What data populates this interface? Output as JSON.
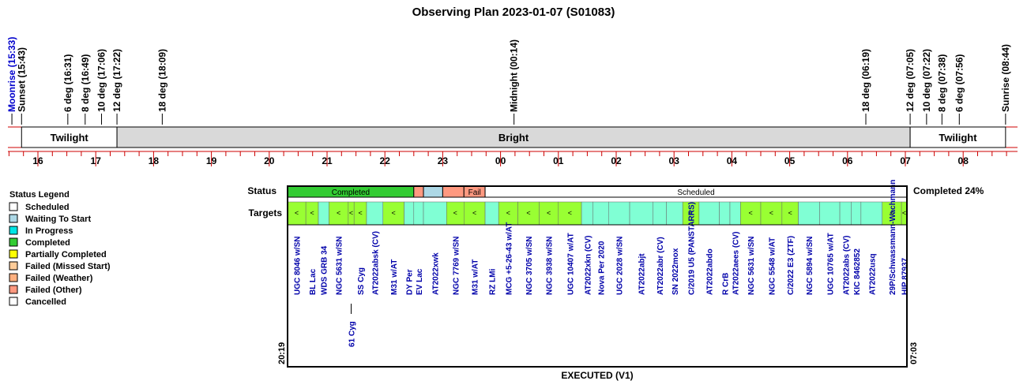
{
  "chart_data": {
    "type": "observing-plan-timeline",
    "title": "Observing Plan 2023-01-07 (S01083)",
    "events": [
      {
        "label": "Moonrise (15:33)",
        "time": 15.55,
        "moon": true
      },
      {
        "label": "Sunset (15:43)",
        "time": 15.717
      },
      {
        "label": "6 deg (16:31)",
        "time": 16.517
      },
      {
        "label": "8 deg (16:49)",
        "time": 16.817
      },
      {
        "label": "10 deg (17:06)",
        "time": 17.1
      },
      {
        "label": "12 deg (17:22)",
        "time": 17.367
      },
      {
        "label": "18 deg (18:09)",
        "time": 18.15
      },
      {
        "label": "Midnight (00:14)",
        "time": 24.233
      },
      {
        "label": "18 deg (06:19)",
        "time": 30.317
      },
      {
        "label": "12 deg (07:05)",
        "time": 31.083
      },
      {
        "label": "10 deg (07:22)",
        "time": 31.367
      },
      {
        "label": "8 deg (07:38)",
        "time": 31.633
      },
      {
        "label": "6 deg (07:56)",
        "time": 31.933
      },
      {
        "label": "Sunrise (08:44)",
        "time": 32.733
      }
    ],
    "bands": [
      {
        "label": "Twilight",
        "start": 15.717,
        "end": 17.367,
        "shade": false
      },
      {
        "label": "Bright",
        "start": 17.367,
        "end": 31.083,
        "shade": true
      },
      {
        "label": "Twilight",
        "start": 31.083,
        "end": 32.733,
        "shade": false
      }
    ],
    "hour_ticks": [
      {
        "label": "16",
        "time": 16
      },
      {
        "label": "17",
        "time": 17
      },
      {
        "label": "18",
        "time": 18
      },
      {
        "label": "19",
        "time": 19
      },
      {
        "label": "20",
        "time": 20
      },
      {
        "label": "21",
        "time": 21
      },
      {
        "label": "22",
        "time": 22
      },
      {
        "label": "23",
        "time": 23
      },
      {
        "label": "00",
        "time": 24
      },
      {
        "label": "01",
        "time": 25
      },
      {
        "label": "02",
        "time": 26
      },
      {
        "label": "03",
        "time": 27
      },
      {
        "label": "04",
        "time": 28
      },
      {
        "label": "05",
        "time": 29
      },
      {
        "label": "06",
        "time": 30
      },
      {
        "label": "07",
        "time": 31
      },
      {
        "label": "08",
        "time": 32
      }
    ],
    "status_label": "Status",
    "targets_label": "Targets",
    "status_segments": [
      {
        "label": "Completed",
        "start": 20.317,
        "end": 22.5,
        "status": "completed"
      },
      {
        "label": "",
        "start": 22.5,
        "end": 22.667,
        "status": "failed-other"
      },
      {
        "label": "",
        "start": 22.667,
        "end": 23.0,
        "status": "waiting"
      },
      {
        "label": "",
        "start": 23.0,
        "end": 23.367,
        "status": "failed-other"
      },
      {
        "label": "Fail",
        "start": 23.367,
        "end": 23.733,
        "status": "failed-other"
      },
      {
        "label": "Scheduled",
        "start": 23.733,
        "end": 31.05,
        "status": "scheduled"
      }
    ],
    "targets": [
      {
        "name": "UGC 8046 w/SN",
        "start": 20.317,
        "end": 20.633,
        "status": "partial",
        "mark": "<"
      },
      {
        "name": "BL Lac",
        "start": 20.633,
        "end": 20.85,
        "status": "partial",
        "mark": "<"
      },
      {
        "name": "WDS GRB 34",
        "start": 20.85,
        "end": 21.033,
        "status": "progress",
        "mark": ""
      },
      {
        "name": "NGC 5631 w/SN",
        "start": 21.033,
        "end": 21.367,
        "status": "partial",
        "mark": "<"
      },
      {
        "name": "61 Cyg",
        "start": 21.367,
        "end": 21.467,
        "status": "partial",
        "mark": "<",
        "low": true
      },
      {
        "name": "SS Cyg",
        "start": 21.467,
        "end": 21.683,
        "status": "partial",
        "mark": "<"
      },
      {
        "name": "AT2022absk (CV)",
        "start": 21.683,
        "end": 21.967,
        "status": "progress",
        "mark": ""
      },
      {
        "name": "M31 w/AT",
        "start": 21.967,
        "end": 22.333,
        "status": "partial",
        "mark": "<"
      },
      {
        "name": "DY Per",
        "start": 22.333,
        "end": 22.5,
        "status": "progress",
        "mark": ""
      },
      {
        "name": "EV Lac",
        "start": 22.5,
        "end": 22.667,
        "status": "progress",
        "mark": ""
      },
      {
        "name": "AT2022xwk",
        "start": 22.667,
        "end": 23.067,
        "status": "progress",
        "mark": ""
      },
      {
        "name": "NGC 7769 w/SN",
        "start": 23.067,
        "end": 23.367,
        "status": "partial",
        "mark": "<"
      },
      {
        "name": "M31 w/AT",
        "start": 23.367,
        "end": 23.733,
        "status": "partial",
        "mark": "<"
      },
      {
        "name": "RZ LMi",
        "start": 23.733,
        "end": 23.967,
        "status": "progress",
        "mark": ""
      },
      {
        "name": "MCG +5-26-43 w/AT",
        "start": 23.967,
        "end": 24.3,
        "status": "partial",
        "mark": "<"
      },
      {
        "name": "NGC 3705 w/SN",
        "start": 24.3,
        "end": 24.667,
        "status": "partial",
        "mark": "<"
      },
      {
        "name": "NGC 3938 w/SN",
        "start": 24.667,
        "end": 25.0,
        "status": "partial",
        "mark": "<"
      },
      {
        "name": "UGC 10407 w/AT",
        "start": 25.0,
        "end": 25.4,
        "status": "partial",
        "mark": "<"
      },
      {
        "name": "AT2022xkn (CV)",
        "start": 25.4,
        "end": 25.6,
        "status": "progress",
        "mark": ""
      },
      {
        "name": "Nova Per 2020",
        "start": 25.6,
        "end": 25.867,
        "status": "progress",
        "mark": ""
      },
      {
        "name": "UGC 2028 w/SN",
        "start": 25.867,
        "end": 26.233,
        "status": "progress",
        "mark": ""
      },
      {
        "name": "AT2022abjt",
        "start": 26.233,
        "end": 26.633,
        "status": "progress",
        "mark": ""
      },
      {
        "name": "AT2022abr (CV)",
        "start": 26.633,
        "end": 26.867,
        "status": "progress",
        "mark": ""
      },
      {
        "name": "SN 2022mox",
        "start": 26.867,
        "end": 27.15,
        "status": "progress",
        "mark": ""
      },
      {
        "name": "C/2019 U5 (PANSTARRS)",
        "start": 27.15,
        "end": 27.433,
        "status": "partial",
        "mark": "<"
      },
      {
        "name": "AT2022abdo",
        "start": 27.433,
        "end": 27.783,
        "status": "progress",
        "mark": ""
      },
      {
        "name": "R CrB",
        "start": 27.783,
        "end": 27.967,
        "status": "progress",
        "mark": ""
      },
      {
        "name": "AT2022aees (CV)",
        "start": 27.967,
        "end": 28.15,
        "status": "progress",
        "mark": ""
      },
      {
        "name": "NGC 5631 w/SN",
        "start": 28.15,
        "end": 28.5,
        "status": "partial",
        "mark": "<"
      },
      {
        "name": "NGC 5548 w/AT",
        "start": 28.5,
        "end": 28.867,
        "status": "partial",
        "mark": "<"
      },
      {
        "name": "C/2022 E3 (ZTF)",
        "start": 28.867,
        "end": 29.15,
        "status": "partial",
        "mark": "<"
      },
      {
        "name": "NGC 5894 w/SN",
        "start": 29.15,
        "end": 29.517,
        "status": "progress",
        "mark": ""
      },
      {
        "name": "UGC 10765 w/AT",
        "start": 29.517,
        "end": 29.867,
        "status": "progress",
        "mark": ""
      },
      {
        "name": "AT2022abs (CV)",
        "start": 29.867,
        "end": 30.067,
        "status": "progress",
        "mark": ""
      },
      {
        "name": "KIC 8462852",
        "start": 30.067,
        "end": 30.233,
        "status": "progress",
        "mark": ""
      },
      {
        "name": "AT2022usq",
        "start": 30.233,
        "end": 30.6,
        "status": "progress",
        "mark": ""
      },
      {
        "name": "29P/Schwassmann-Wachmann",
        "start": 30.6,
        "end": 30.933,
        "status": "partial",
        "mark": "<"
      },
      {
        "name": "HIP 87937",
        "start": 30.933,
        "end": 31.05,
        "status": "partial",
        "mark": "<"
      }
    ],
    "completed_text": "Completed 24%",
    "start_time": "20:19",
    "end_time": "07:03",
    "footer": "EXECUTED (V1)",
    "legend": {
      "title": "Status Legend",
      "items": [
        {
          "label": "Scheduled",
          "color": "#ffffff"
        },
        {
          "label": "Waiting To Start",
          "color": "#add8e6"
        },
        {
          "label": "In Progress",
          "color": "#00e5e5"
        },
        {
          "label": "Completed",
          "color": "#33cc33"
        },
        {
          "label": "Partially Completed",
          "color": "#ffff00"
        },
        {
          "label": "Failed (Missed Start)",
          "color": "#ffcc99"
        },
        {
          "label": "Failed (Weather)",
          "color": "#ffb080"
        },
        {
          "label": "Failed (Other)",
          "color": "#ff9980"
        },
        {
          "label": "Cancelled",
          "color": "#ffffff"
        }
      ]
    },
    "colors": {
      "axis_line": "#cc0000",
      "bright_band": "#d9d9d9",
      "completed": "#33cc33",
      "waiting": "#add8e6",
      "failed_other": "#ff9980",
      "scheduled": "#ffffff",
      "target_partial": "#99ff33",
      "target_progress": "#80ffd4",
      "target_text": "#0000aa",
      "moon_text": "#0000cc"
    }
  }
}
